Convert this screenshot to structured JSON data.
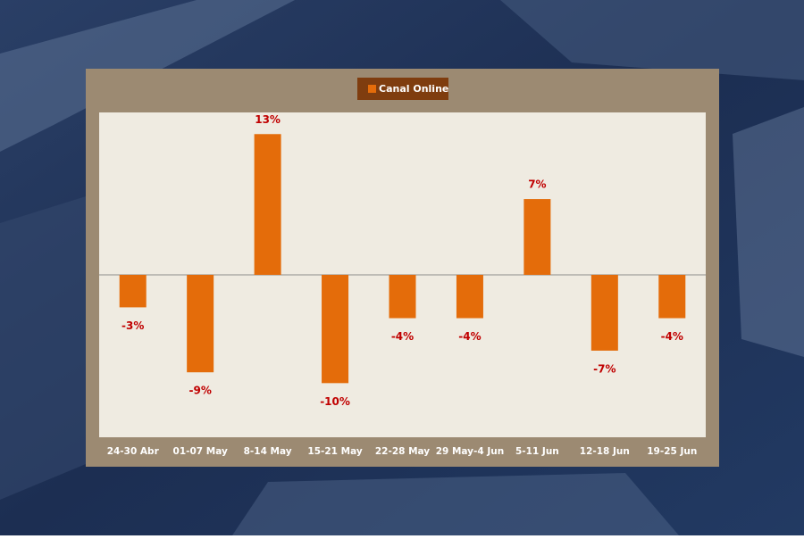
{
  "chart_data": {
    "type": "bar",
    "legend": "Canal Online",
    "categories": [
      "24-30 Abr",
      "01-07 May",
      "8-14 May",
      "15-21 May",
      "22-28 May",
      "29 May-4  Jun",
      "5-11 Jun",
      "12-18 Jun",
      "19-25 Jun"
    ],
    "series": [
      {
        "name": "Canal Online",
        "color": "#e46c0a",
        "values": [
          -3,
          -9,
          13,
          -10,
          -4,
          -4,
          7,
          -7,
          -4
        ],
        "value_labels": [
          "-3%",
          "-9%",
          "13%",
          "-10%",
          "-4%",
          "-4%",
          "7%",
          "-7%",
          "-4%"
        ]
      }
    ],
    "ylim": [
      -15,
      15
    ]
  }
}
